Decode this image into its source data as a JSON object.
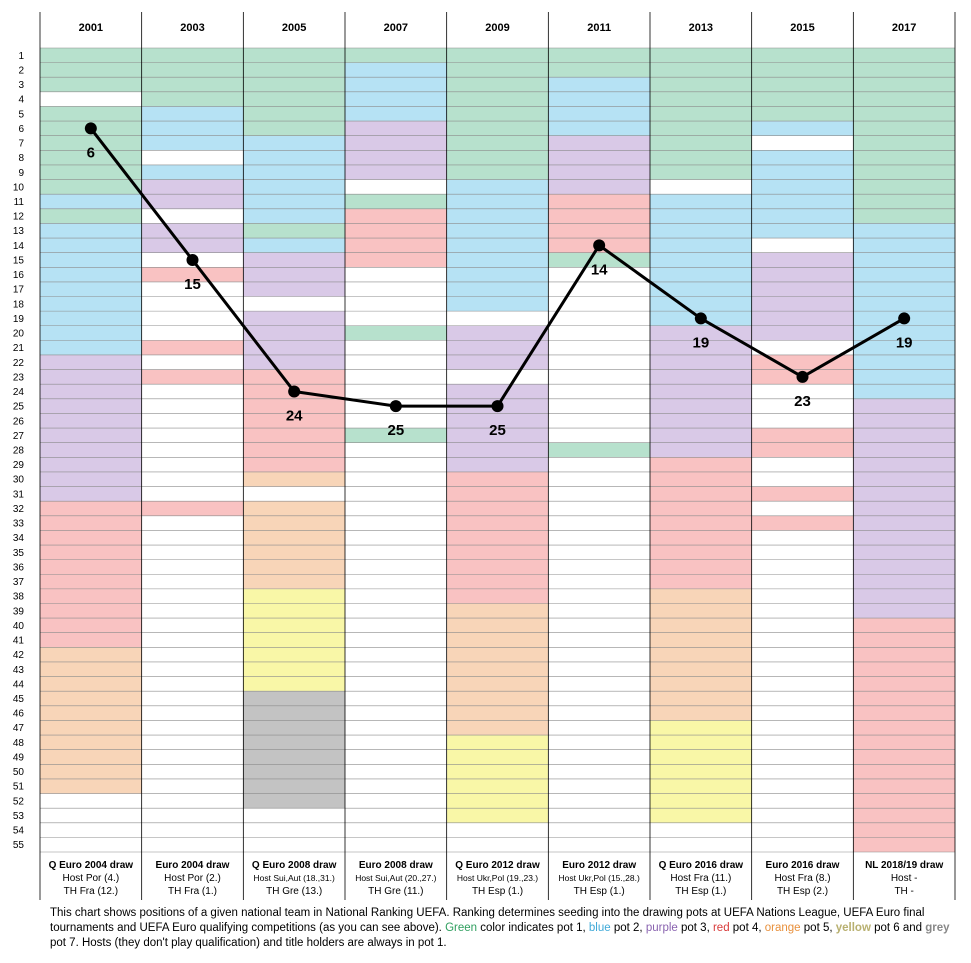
{
  "chart_data": {
    "type": "line",
    "top_labels": [
      "2001",
      "2003",
      "2005",
      "2007",
      "2009",
      "2011",
      "2013",
      "2015",
      "2017"
    ],
    "categories": [
      {
        "name": "Q Euro 2004 draw",
        "host": "Host Por (4.)",
        "th": "TH Fra (12.)"
      },
      {
        "name": "Euro 2004 draw",
        "host": "Host Por (2.)",
        "th": "TH Fra (1.)"
      },
      {
        "name": "Q Euro 2008 draw",
        "host": "Host Sui,Aut (18.,31.)",
        "th": "TH Gre (13.)"
      },
      {
        "name": "Euro 2008 draw",
        "host": "Host Sui,Aut (20.,27.)",
        "th": "TH Gre (11.)"
      },
      {
        "name": "Q Euro 2012 draw",
        "host": "Host Ukr,Pol (19.,23.)",
        "th": "TH Esp (1.)"
      },
      {
        "name": "Euro 2012 draw",
        "host": "Host Ukr,Pol (15.,28.)",
        "th": "TH Esp (1.)"
      },
      {
        "name": "Q Euro 2016 draw",
        "host": "Host Fra (11.)",
        "th": "TH Esp (1.)"
      },
      {
        "name": "Euro 2016 draw",
        "host": "Host Fra (8.)",
        "th": "TH Esp (2.)"
      },
      {
        "name": "NL 2018/19 draw",
        "host": "Host -",
        "th": "TH -"
      }
    ],
    "values": [
      6,
      15,
      24,
      25,
      25,
      14,
      19,
      23,
      19
    ],
    "y_ticks": [
      1,
      2,
      3,
      4,
      5,
      6,
      7,
      8,
      9,
      10,
      11,
      12,
      13,
      14,
      15,
      16,
      17,
      18,
      19,
      20,
      21,
      22,
      23,
      24,
      25,
      26,
      27,
      28,
      29,
      30,
      31,
      32,
      33,
      34,
      35,
      36,
      37,
      38,
      39,
      40,
      41,
      42,
      43,
      44,
      45,
      46,
      47,
      48,
      49,
      50,
      51,
      52,
      53,
      54,
      55
    ],
    "ylim": [
      1,
      55
    ],
    "y_inverted": true,
    "grid": true,
    "pot_colors": {
      "1": "#b7e1cd",
      "2": "#b6e2f4",
      "3": "#d9c9e7",
      "4": "#f9c2c2",
      "5": "#f8d5b8",
      "6": "#f9f7a7",
      "7": "#c3c3c3",
      "none": "#ffffff"
    },
    "pot_bands": [
      [
        [
          1,
          3,
          "1"
        ],
        [
          4,
          4,
          "none"
        ],
        [
          5,
          10,
          "1"
        ],
        [
          11,
          11,
          "2"
        ],
        [
          12,
          12,
          "1"
        ],
        [
          13,
          21,
          "2"
        ],
        [
          22,
          31,
          "3"
        ],
        [
          32,
          41,
          "4"
        ],
        [
          42,
          51,
          "5"
        ],
        [
          52,
          55,
          "none"
        ]
      ],
      [
        [
          1,
          4,
          "1"
        ],
        [
          5,
          7,
          "2"
        ],
        [
          8,
          8,
          "none"
        ],
        [
          9,
          9,
          "2"
        ],
        [
          10,
          11,
          "3"
        ],
        [
          12,
          12,
          "none"
        ],
        [
          13,
          14,
          "3"
        ],
        [
          15,
          15,
          "none"
        ],
        [
          16,
          16,
          "4"
        ],
        [
          17,
          20,
          "none"
        ],
        [
          21,
          21,
          "4"
        ],
        [
          22,
          22,
          "none"
        ],
        [
          23,
          23,
          "4"
        ],
        [
          24,
          31,
          "none"
        ],
        [
          32,
          32,
          "4"
        ],
        [
          33,
          55,
          "none"
        ]
      ],
      [
        [
          1,
          6,
          "1"
        ],
        [
          7,
          12,
          "2"
        ],
        [
          13,
          13,
          "1"
        ],
        [
          14,
          14,
          "2"
        ],
        [
          15,
          17,
          "3"
        ],
        [
          18,
          18,
          "none"
        ],
        [
          19,
          22,
          "3"
        ],
        [
          23,
          29,
          "4"
        ],
        [
          30,
          30,
          "5"
        ],
        [
          31,
          31,
          "none"
        ],
        [
          32,
          37,
          "5"
        ],
        [
          38,
          44,
          "6"
        ],
        [
          45,
          52,
          "7"
        ],
        [
          53,
          55,
          "none"
        ]
      ],
      [
        [
          1,
          1,
          "1"
        ],
        [
          2,
          5,
          "2"
        ],
        [
          6,
          9,
          "3"
        ],
        [
          10,
          10,
          "none"
        ],
        [
          11,
          11,
          "1"
        ],
        [
          12,
          15,
          "4"
        ],
        [
          16,
          19,
          "none"
        ],
        [
          20,
          20,
          "1"
        ],
        [
          21,
          26,
          "none"
        ],
        [
          27,
          27,
          "1"
        ],
        [
          28,
          55,
          "none"
        ]
      ],
      [
        [
          1,
          9,
          "1"
        ],
        [
          10,
          18,
          "2"
        ],
        [
          19,
          19,
          "none"
        ],
        [
          20,
          22,
          "3"
        ],
        [
          23,
          23,
          "none"
        ],
        [
          24,
          29,
          "3"
        ],
        [
          30,
          38,
          "4"
        ],
        [
          39,
          47,
          "5"
        ],
        [
          48,
          53,
          "6"
        ],
        [
          54,
          55,
          "none"
        ]
      ],
      [
        [
          1,
          2,
          "1"
        ],
        [
          3,
          6,
          "2"
        ],
        [
          7,
          10,
          "3"
        ],
        [
          11,
          14,
          "4"
        ],
        [
          15,
          15,
          "1"
        ],
        [
          16,
          27,
          "none"
        ],
        [
          28,
          28,
          "1"
        ],
        [
          29,
          55,
          "none"
        ]
      ],
      [
        [
          1,
          9,
          "1"
        ],
        [
          10,
          10,
          "none"
        ],
        [
          11,
          19,
          "2"
        ],
        [
          20,
          28,
          "3"
        ],
        [
          29,
          37,
          "4"
        ],
        [
          38,
          46,
          "5"
        ],
        [
          47,
          53,
          "6"
        ],
        [
          54,
          55,
          "none"
        ]
      ],
      [
        [
          1,
          5,
          "1"
        ],
        [
          6,
          6,
          "2"
        ],
        [
          7,
          7,
          "none"
        ],
        [
          8,
          13,
          "2"
        ],
        [
          14,
          14,
          "none"
        ],
        [
          15,
          20,
          "3"
        ],
        [
          21,
          21,
          "none"
        ],
        [
          22,
          23,
          "4"
        ],
        [
          24,
          26,
          "none"
        ],
        [
          27,
          28,
          "4"
        ],
        [
          29,
          30,
          "none"
        ],
        [
          31,
          31,
          "4"
        ],
        [
          32,
          32,
          "none"
        ],
        [
          33,
          33,
          "4"
        ],
        [
          34,
          55,
          "none"
        ]
      ],
      [
        [
          1,
          12,
          "1"
        ],
        [
          13,
          24,
          "2"
        ],
        [
          25,
          39,
          "3"
        ],
        [
          40,
          55,
          "4"
        ]
      ]
    ]
  },
  "caption": {
    "text1": "This chart shows positions of a given national team in National Ranking UEFA. Ranking determines seeding into the drawing pots at UEFA Nations League, UEFA Euro final tournaments and UEFA Euro qualifying competitions (as you can see above). ",
    "green": "Green",
    "text2": " color indicates pot 1, ",
    "blue": "blue",
    "text3": " pot 2, ",
    "purple": "purple",
    "text4": " pot 3, ",
    "red": "red",
    "text5": " pot 4, ",
    "orange": "orange",
    "text6": " pot 5, ",
    "yellow": "yellow",
    "text7": " pot 6 and ",
    "grey": "grey",
    "text8": " pot 7. Hosts (they don't play qualification) and title holders are always in pot 1."
  }
}
